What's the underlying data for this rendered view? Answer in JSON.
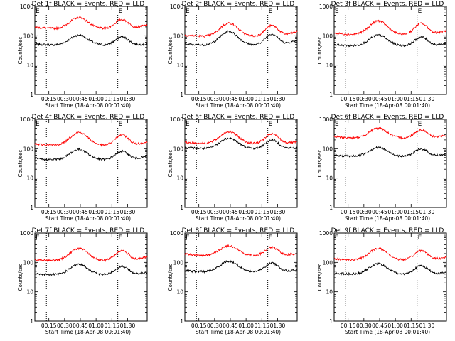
{
  "chart_data": [
    {
      "type": "line",
      "title": "Det 1f BLACK = Events, RED = LLD",
      "xlabel": "Start Time (18-Apr-08 00:01:40)",
      "ylabel": "Counts/sec",
      "yscale": "log",
      "ylim": [
        1,
        1000
      ],
      "ytick_labels": [
        "1",
        "10",
        "100",
        "1000"
      ],
      "x_unit": "minutes since start",
      "xlim": [
        0,
        107
      ],
      "xtick_values": [
        13.33,
        28.33,
        43.33,
        58.33,
        73.33,
        88.33
      ],
      "xtick_labels": [
        "00:15",
        "00:30",
        "00:45",
        "01:00",
        "01:15",
        "01:30"
      ],
      "vlines": [
        11,
        79
      ],
      "markers": [
        {
          "label": "E",
          "x": 0
        },
        {
          "label": "E",
          "x": 79
        }
      ],
      "series": [
        {
          "name": "BLACK",
          "color": "#000000",
          "base": 48,
          "peak": 105,
          "valley_x": 18,
          "peak1_x": 42,
          "peak2_x": 83,
          "end": 52
        },
        {
          "name": "RED",
          "color": "#ff0000",
          "base": 175,
          "peak": 420,
          "valley_x": 18,
          "peak1_x": 42,
          "peak2_x": 83,
          "end": 230
        }
      ]
    },
    {
      "type": "line",
      "title": "Det 2f BLACK = Events, RED = LLD",
      "xlabel": "Start Time (18-Apr-08 00:01:40)",
      "ylabel": "Counts/sec",
      "yscale": "log",
      "ylim": [
        1,
        1000
      ],
      "ytick_labels": [
        "1",
        "10",
        "100",
        "1000"
      ],
      "x_unit": "minutes since start",
      "xlim": [
        0,
        107
      ],
      "xtick_values": [
        13.33,
        28.33,
        43.33,
        58.33,
        73.33,
        88.33
      ],
      "xtick_labels": [
        "00:15",
        "00:30",
        "00:45",
        "01:00",
        "01:15",
        "01:30"
      ],
      "vlines": [
        11,
        79
      ],
      "markers": [
        {
          "label": "E",
          "x": 0
        },
        {
          "label": "E",
          "x": 79
        }
      ],
      "series": [
        {
          "name": "BLACK",
          "color": "#000000",
          "base": 48,
          "peak": 140,
          "valley_x": 18,
          "peak1_x": 42,
          "peak2_x": 83,
          "end": 70
        },
        {
          "name": "RED",
          "color": "#ff0000",
          "base": 95,
          "peak": 270,
          "valley_x": 18,
          "peak1_x": 42,
          "peak2_x": 83,
          "end": 140
        }
      ]
    },
    {
      "type": "line",
      "title": "Det 3f BLACK = Events, RED = LLD",
      "xlabel": "Start Time (18-Apr-08 00:01:40)",
      "ylabel": "Counts/sec",
      "yscale": "log",
      "ylim": [
        1,
        1000
      ],
      "ytick_labels": [
        "1",
        "10",
        "100",
        "1000"
      ],
      "x_unit": "minutes since start",
      "xlim": [
        0,
        107
      ],
      "xtick_values": [
        13.33,
        28.33,
        43.33,
        58.33,
        73.33,
        88.33
      ],
      "xtick_labels": [
        "00:15",
        "00:30",
        "00:45",
        "01:00",
        "01:15",
        "01:30"
      ],
      "vlines": [
        11,
        79
      ],
      "markers": [
        {
          "label": "E",
          "x": 0
        },
        {
          "label": "E",
          "x": 79
        }
      ],
      "series": [
        {
          "name": "BLACK",
          "color": "#000000",
          "base": 45,
          "peak": 105,
          "valley_x": 18,
          "peak1_x": 42,
          "peak2_x": 83,
          "end": 55
        },
        {
          "name": "RED",
          "color": "#ff0000",
          "base": 110,
          "peak": 320,
          "valley_x": 18,
          "peak1_x": 42,
          "peak2_x": 83,
          "end": 150
        }
      ]
    },
    {
      "type": "line",
      "title": "Det 4f BLACK = Events, RED = LLD",
      "xlabel": "Start Time (18-Apr-08 00:01:40)",
      "ylabel": "Counts/sec",
      "yscale": "log",
      "ylim": [
        1,
        1000
      ],
      "ytick_labels": [
        "1",
        "10",
        "100",
        "1000"
      ],
      "x_unit": "minutes since start",
      "xlim": [
        0,
        107
      ],
      "xtick_values": [
        13.33,
        28.33,
        43.33,
        58.33,
        73.33,
        88.33
      ],
      "xtick_labels": [
        "00:15",
        "00:30",
        "00:45",
        "01:00",
        "01:15",
        "01:30"
      ],
      "vlines": [
        11,
        79
      ],
      "markers": [
        {
          "label": "E",
          "x": 0
        },
        {
          "label": "E",
          "x": 79
        }
      ],
      "series": [
        {
          "name": "BLACK",
          "color": "#000000",
          "base": 42,
          "peak": 95,
          "valley_x": 18,
          "peak1_x": 42,
          "peak2_x": 83,
          "end": 55
        },
        {
          "name": "RED",
          "color": "#ff0000",
          "base": 130,
          "peak": 360,
          "valley_x": 18,
          "peak1_x": 42,
          "peak2_x": 83,
          "end": 170
        }
      ]
    },
    {
      "type": "line",
      "title": "Det 5f BLACK = Events, RED = LLD",
      "xlabel": "Start Time (18-Apr-08 00:01:40)",
      "ylabel": "Counts/sec",
      "yscale": "log",
      "ylim": [
        1,
        1000
      ],
      "ytick_labels": [
        "1",
        "10",
        "100",
        "1000"
      ],
      "x_unit": "minutes since start",
      "xlim": [
        0,
        107
      ],
      "xtick_values": [
        13.33,
        28.33,
        43.33,
        58.33,
        73.33,
        88.33
      ],
      "xtick_labels": [
        "00:15",
        "00:30",
        "00:45",
        "01:00",
        "01:15",
        "01:30"
      ],
      "vlines": [
        11,
        79
      ],
      "markers": [
        {
          "label": "E",
          "x": 0
        },
        {
          "label": "E",
          "x": 79
        }
      ],
      "series": [
        {
          "name": "BLACK",
          "color": "#000000",
          "base": 100,
          "peak": 230,
          "valley_x": 18,
          "peak1_x": 42,
          "peak2_x": 83,
          "end": 110
        },
        {
          "name": "RED",
          "color": "#ff0000",
          "base": 150,
          "peak": 380,
          "valley_x": 18,
          "peak1_x": 42,
          "peak2_x": 83,
          "end": 170
        }
      ]
    },
    {
      "type": "line",
      "title": "Det 6f BLACK = Events, RED = LLD",
      "xlabel": "Start Time (18-Apr-08 00:01:40)",
      "ylabel": "Counts/sec",
      "yscale": "log",
      "ylim": [
        1,
        1000
      ],
      "ytick_labels": [
        "1",
        "10",
        "100",
        "1000"
      ],
      "x_unit": "minutes since start",
      "xlim": [
        0,
        107
      ],
      "xtick_values": [
        13.33,
        28.33,
        43.33,
        58.33,
        73.33,
        88.33
      ],
      "xtick_labels": [
        "00:15",
        "00:30",
        "00:45",
        "01:00",
        "01:15",
        "01:30"
      ],
      "vlines": [
        11,
        79
      ],
      "markers": [
        {
          "label": "E",
          "x": 0
        },
        {
          "label": "E",
          "x": 79
        }
      ],
      "series": [
        {
          "name": "BLACK",
          "color": "#000000",
          "base": 55,
          "peak": 110,
          "valley_x": 18,
          "peak1_x": 42,
          "peak2_x": 83,
          "end": 65
        },
        {
          "name": "RED",
          "color": "#ff0000",
          "base": 230,
          "peak": 500,
          "valley_x": 18,
          "peak1_x": 42,
          "peak2_x": 83,
          "end": 280
        }
      ]
    },
    {
      "type": "line",
      "title": "Det 7f BLACK = Events, RED = LLD",
      "xlabel": "Start Time (18-Apr-08 00:01:40)",
      "ylabel": "Counts/sec",
      "yscale": "log",
      "ylim": [
        1,
        1000
      ],
      "ytick_labels": [
        "1",
        "10",
        "100",
        "1000"
      ],
      "x_unit": "minutes since start",
      "xlim": [
        0,
        107
      ],
      "xtick_values": [
        13.33,
        28.33,
        43.33,
        58.33,
        73.33,
        88.33
      ],
      "xtick_labels": [
        "00:15",
        "00:30",
        "00:45",
        "01:00",
        "01:15",
        "01:30"
      ],
      "vlines": [
        11,
        79
      ],
      "markers": [
        {
          "label": "E",
          "x": 0
        },
        {
          "label": "E",
          "x": 79
        }
      ],
      "series": [
        {
          "name": "BLACK",
          "color": "#000000",
          "base": 38,
          "peak": 85,
          "valley_x": 18,
          "peak1_x": 42,
          "peak2_x": 83,
          "end": 45
        },
        {
          "name": "RED",
          "color": "#ff0000",
          "base": 115,
          "peak": 300,
          "valley_x": 18,
          "peak1_x": 42,
          "peak2_x": 83,
          "end": 150
        }
      ]
    },
    {
      "type": "line",
      "title": "Det 8f BLACK = Events, RED = LLD",
      "xlabel": "Start Time (18-Apr-08 00:01:40)",
      "ylabel": "Counts/sec",
      "yscale": "log",
      "ylim": [
        1,
        1000
      ],
      "ytick_labels": [
        "1",
        "10",
        "100",
        "1000"
      ],
      "x_unit": "minutes since start",
      "xlim": [
        0,
        107
      ],
      "xtick_values": [
        13.33,
        28.33,
        43.33,
        58.33,
        73.33,
        88.33
      ],
      "xtick_labels": [
        "00:15",
        "00:30",
        "00:45",
        "01:00",
        "01:15",
        "01:30"
      ],
      "vlines": [
        11,
        79
      ],
      "markers": [
        {
          "label": "E",
          "x": 0
        },
        {
          "label": "E",
          "x": 79
        }
      ],
      "series": [
        {
          "name": "BLACK",
          "color": "#000000",
          "base": 48,
          "peak": 110,
          "valley_x": 18,
          "peak1_x": 42,
          "peak2_x": 83,
          "end": 55
        },
        {
          "name": "RED",
          "color": "#ff0000",
          "base": 170,
          "peak": 370,
          "valley_x": 18,
          "peak1_x": 42,
          "peak2_x": 83,
          "end": 200
        }
      ]
    },
    {
      "type": "line",
      "title": "Det 9f BLACK = Events, RED = LLD",
      "xlabel": "Start Time (18-Apr-08 00:01:40)",
      "ylabel": "Counts/sec",
      "yscale": "log",
      "ylim": [
        1,
        1000
      ],
      "ytick_labels": [
        "1",
        "10",
        "100",
        "1000"
      ],
      "x_unit": "minutes since start",
      "xlim": [
        0,
        107
      ],
      "xtick_values": [
        13.33,
        28.33,
        43.33,
        58.33,
        73.33,
        88.33
      ],
      "xtick_labels": [
        "00:15",
        "00:30",
        "00:45",
        "01:00",
        "01:15",
        "01:30"
      ],
      "vlines": [
        11,
        79
      ],
      "markers": [
        {
          "label": "E",
          "x": 0
        },
        {
          "label": "E",
          "x": 79
        }
      ],
      "series": [
        {
          "name": "BLACK",
          "color": "#000000",
          "base": 40,
          "peak": 90,
          "valley_x": 18,
          "peak1_x": 42,
          "peak2_x": 83,
          "end": 45
        },
        {
          "name": "RED",
          "color": "#ff0000",
          "base": 120,
          "peak": 300,
          "valley_x": 18,
          "peak1_x": 42,
          "peak2_x": 83,
          "end": 150
        }
      ]
    }
  ]
}
